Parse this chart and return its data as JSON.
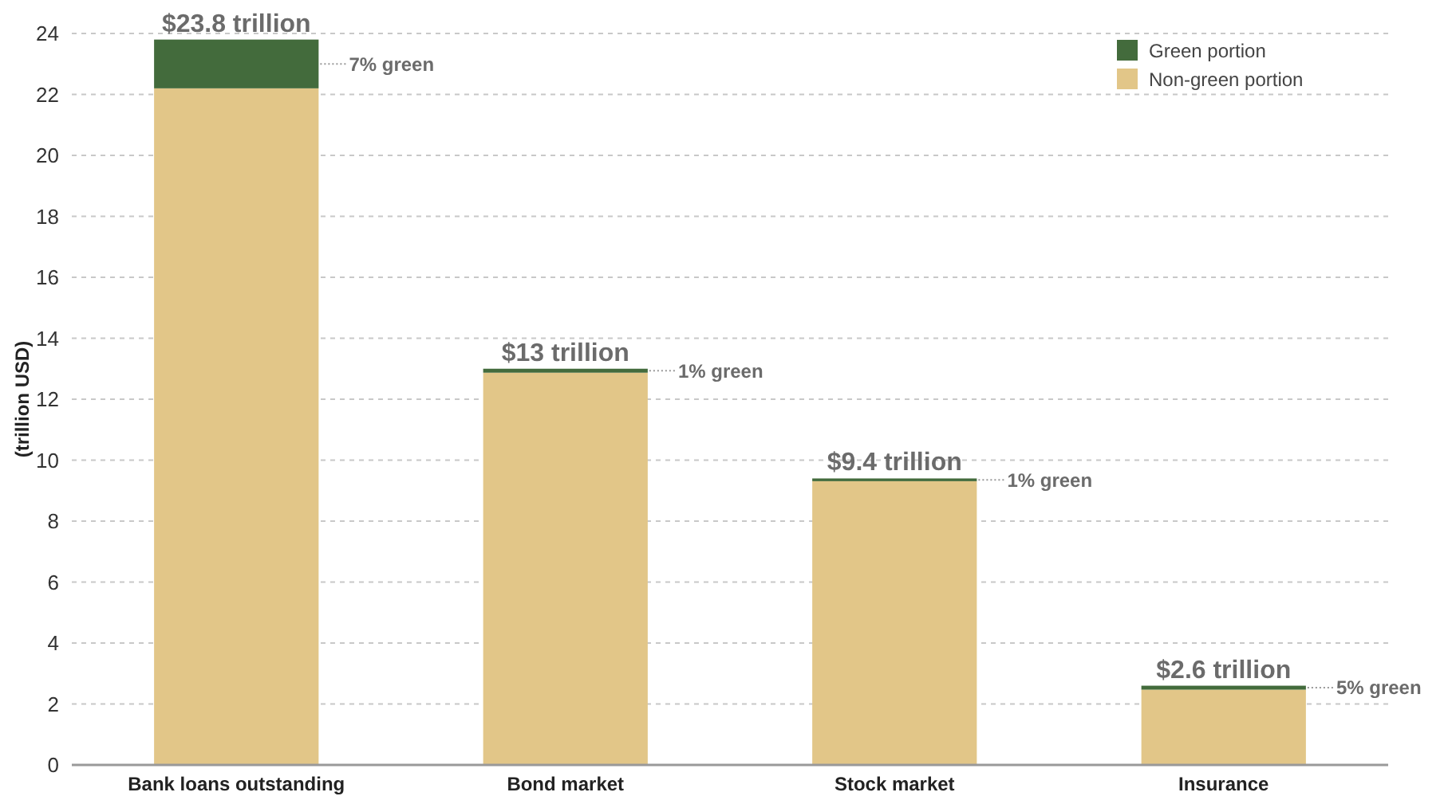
{
  "chart_data": {
    "type": "bar",
    "stacked": true,
    "ylabel": "(trillion USD)",
    "categories": [
      "Bank loans outstanding",
      "Bond market",
      "Stock market",
      "Insurance"
    ],
    "series": [
      {
        "name": "Non-green portion",
        "color": "#e2c688",
        "values": [
          22.2,
          12.87,
          9.31,
          2.47
        ]
      },
      {
        "name": "Green portion",
        "color": "#436b3c",
        "values": [
          1.6,
          0.13,
          0.09,
          0.13
        ]
      }
    ],
    "totals": [
      "$23.8 trillion",
      "$13 trillion",
      "$9.4 trillion",
      "$2.6 trillion"
    ],
    "annotations": [
      "7% green",
      "1% green",
      "1% green",
      "5% green"
    ],
    "ylim": [
      0,
      24
    ],
    "yticks": [
      0,
      2,
      4,
      6,
      8,
      10,
      12,
      14,
      16,
      18,
      20,
      22,
      24
    ],
    "grid": "y",
    "legend": "top right"
  }
}
